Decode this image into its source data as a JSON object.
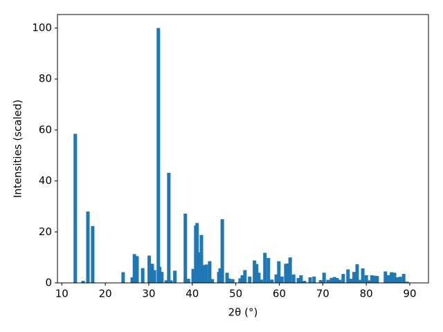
{
  "chart_data": {
    "type": "bar",
    "xlabel": "2θ (°)",
    "ylabel": "Intensities (scaled)",
    "color": "#1f77b4",
    "x": [
      13.1,
      14.9,
      16.0,
      17.1,
      24.1,
      26.2,
      26.7,
      27.3,
      28.6,
      30.1,
      30.8,
      31.3,
      32.2,
      32.5,
      33.0,
      34.0,
      34.6,
      35.1,
      36.0,
      38.4,
      39.1,
      40.2,
      40.8,
      41.1,
      41.6,
      42.1,
      42.7,
      43.2,
      44.0,
      44.6,
      46.1,
      46.4,
      46.9,
      48.0,
      48.5,
      49.3,
      51.0,
      51.5,
      52.1,
      53.2,
      54.3,
      54.8,
      55.3,
      55.9,
      56.7,
      57.5,
      58.3,
      59.3,
      59.9,
      60.6,
      61.5,
      62.0,
      62.5,
      63.3,
      64.4,
      65.0,
      65.8,
      67.1,
      68.0,
      69.5,
      70.3,
      71.2,
      72.0,
      72.7,
      73.3,
      73.9,
      74.7,
      75.8,
      76.5,
      77.2,
      77.9,
      78.5,
      79.2,
      80.0,
      80.6,
      81.3,
      81.9,
      82.5,
      84.4,
      85.1,
      85.8,
      86.5,
      87.2,
      87.8,
      88.6,
      89.4
    ],
    "values": [
      58.5,
      0.8,
      28,
      22.3,
      4.2,
      2.2,
      11.3,
      10.5,
      5.8,
      10.7,
      7.5,
      5,
      100,
      6.3,
      4.3,
      1,
      43.2,
      1,
      4.8,
      27.2,
      1.6,
      5.5,
      22.5,
      23.5,
      12,
      18.8,
      7,
      7.2,
      8.5,
      1.5,
      4.3,
      5.7,
      25,
      4,
      1.7,
      1.5,
      1.8,
      3,
      5,
      2.5,
      8.8,
      7.4,
      4,
      1.3,
      11.8,
      9.8,
      1.3,
      3.3,
      8.5,
      2.5,
      7.5,
      7.6,
      10,
      3.3,
      1.9,
      3,
      0.8,
      2.2,
      2.5,
      1.1,
      4,
      1.2,
      2,
      2.3,
      1.9,
      1.2,
      3.5,
      5.3,
      1.6,
      4.3,
      7.3,
      1.2,
      5.7,
      3,
      1,
      3,
      2.8,
      2.7,
      4.5,
      3,
      4.2,
      4,
      2.2,
      2.4,
      3.5,
      0.5
    ],
    "xlim": [
      9,
      94.3
    ],
    "xticks": [
      10,
      20,
      30,
      40,
      50,
      60,
      70,
      80,
      90
    ],
    "ylim": [
      0,
      105.3
    ],
    "yticks": [
      0,
      20,
      40,
      60,
      80,
      100
    ]
  }
}
